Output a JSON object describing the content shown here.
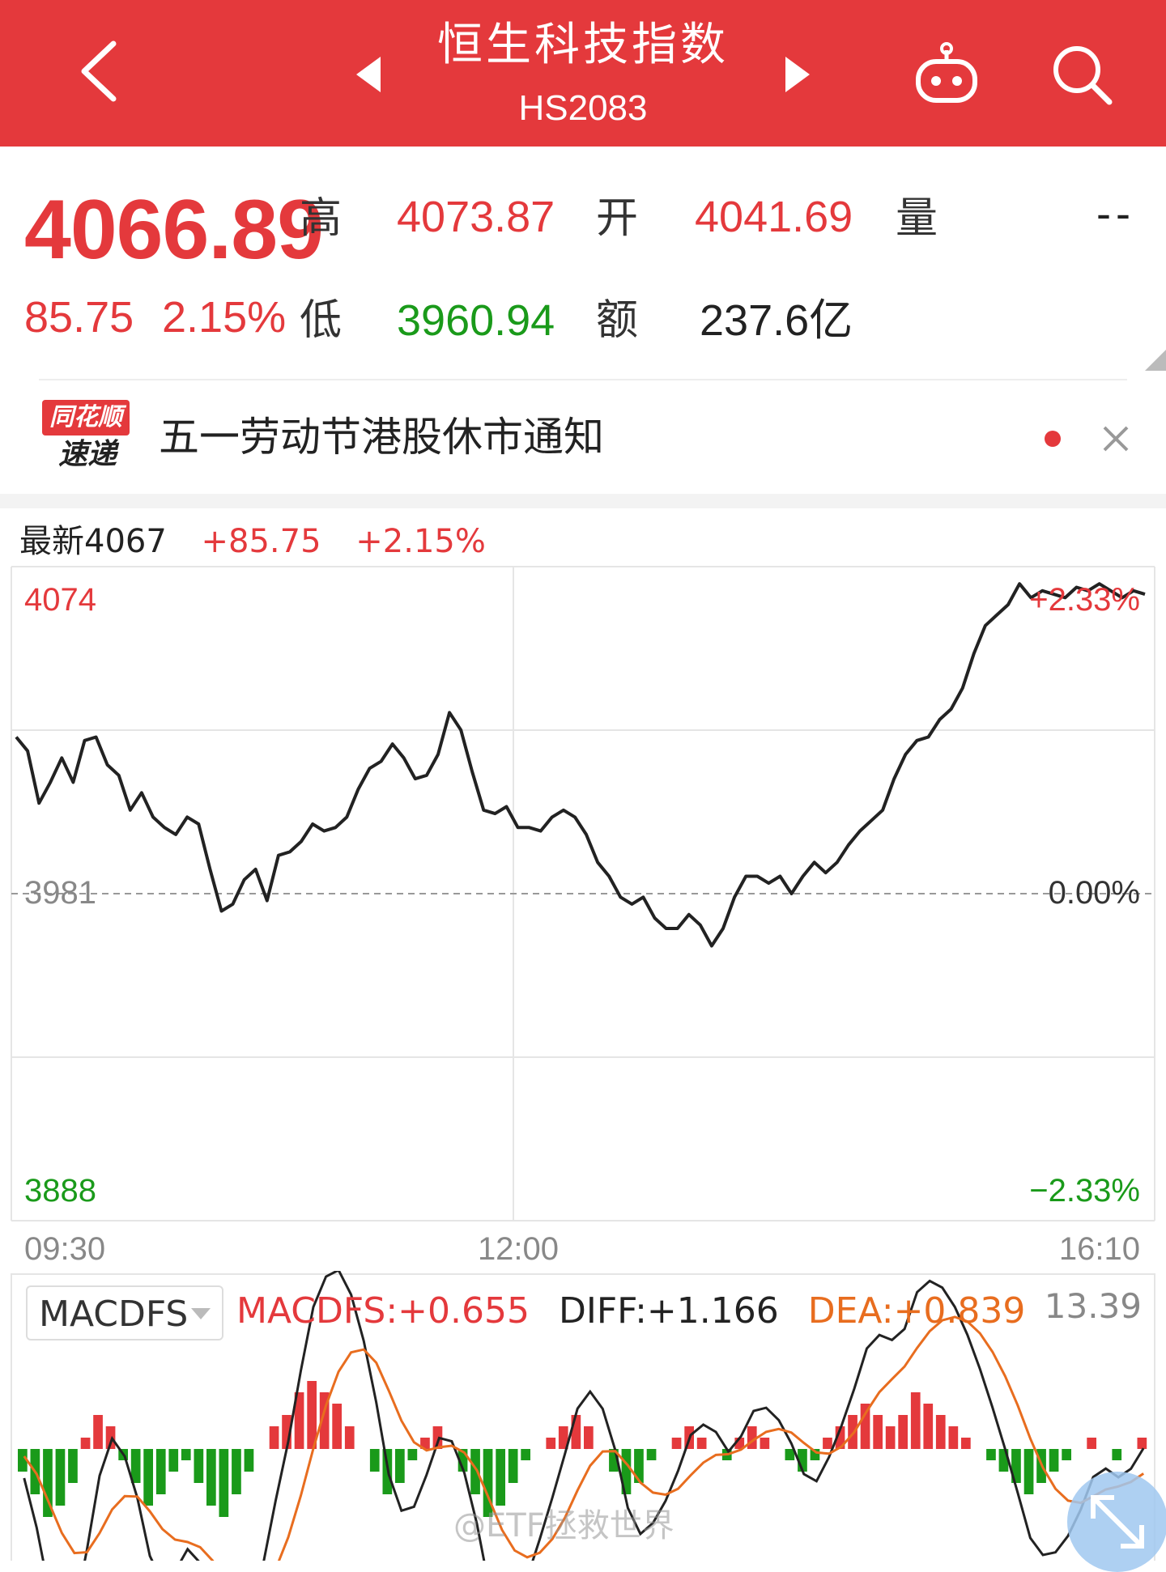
{
  "header": {
    "title": "恒生科技指数",
    "code": "HS2083",
    "icons": [
      "back-icon",
      "prev-arrow-icon",
      "next-arrow-icon",
      "robot-icon",
      "search-icon"
    ]
  },
  "quote": {
    "price": "4066.89",
    "change": "85.75",
    "change_pct": "2.15%",
    "high_label": "高",
    "high": "4073.87",
    "low_label": "低",
    "low": "3960.94",
    "open_label": "开",
    "open": "4041.69",
    "amount_label": "额",
    "amount": "237.6亿",
    "volume_label": "量",
    "volume": "--"
  },
  "news": {
    "logo_top": "同花顺",
    "logo_bottom": "速递",
    "text": "五一劳动节港股休市通知"
  },
  "chart": {
    "latest_label": "最新4067",
    "latest_change": "+85.75",
    "latest_pct": "+2.15%",
    "y_top": "4074",
    "y_mid": "3981",
    "y_bot": "3888",
    "pct_top": "+2.33%",
    "pct_mid": "0.00%",
    "pct_bot": "−2.33%",
    "time_start": "09:30",
    "time_mid": "12:00",
    "time_end": "16:10"
  },
  "chart_data": {
    "type": "line",
    "series": [
      {
        "values": [
          4026,
          4022,
          4007,
          4013,
          4020,
          4013,
          4025,
          4026,
          4018,
          4015,
          4005,
          4010,
          4003,
          4000,
          3998,
          4003,
          4001,
          3988,
          3976,
          3978,
          3985,
          3988,
          3979,
          3992,
          3993,
          3996,
          4001,
          3999,
          4000,
          4003,
          4011,
          4017,
          4019,
          4024,
          4020,
          4014,
          4015,
          4021,
          4033,
          4028,
          4016,
          4005,
          4004,
          4006,
          4000,
          4000,
          3999,
          4003,
          4005,
          4003,
          3998,
          3990,
          3986,
          3980,
          3978,
          3980,
          3974,
          3971,
          3971,
          3975,
          3972,
          3966,
          3971,
          3980,
          3986,
          3986,
          3984,
          3986,
          3981,
          3986,
          3990,
          3987,
          3990,
          3995,
          3999,
          4002,
          4005,
          4014,
          4021,
          4025,
          4026,
          4031,
          4034,
          4040,
          4050,
          4058,
          4061,
          4064,
          4070,
          4066,
          4068,
          4067,
          4066,
          4069,
          4068,
          4070,
          4068,
          4066,
          4068,
          4067
        ],
        "color": "#222222"
      }
    ],
    "x_range": [
      "09:30",
      "16:10"
    ],
    "y_range": [
      3888,
      4074
    ],
    "baseline": 3981,
    "grid": true
  },
  "macd": {
    "selector_label": "MACDFS",
    "macdfs": "MACDFS:+0.655",
    "diff": "DIFF:+1.166",
    "dea": "DEA:+0.839",
    "max_value": "13.39",
    "hist_values": [
      -2,
      -4,
      -6,
      -5,
      -3,
      1,
      3,
      2,
      -1,
      -3,
      -5,
      -4,
      -2,
      -1,
      -3,
      -5,
      -6,
      -4,
      -2,
      0,
      2,
      3,
      5,
      6,
      5,
      4,
      2,
      0,
      -2,
      -4,
      -3,
      -1,
      1,
      2,
      0,
      -2,
      -4,
      -6,
      -5,
      -3,
      -1,
      0,
      1,
      2,
      3,
      2,
      0,
      -2,
      -4,
      -3,
      -1,
      0,
      1,
      2,
      1,
      0,
      -1,
      1,
      2,
      1,
      0,
      -1,
      -2,
      -1,
      1,
      2,
      3,
      4,
      3,
      2,
      3,
      5,
      4,
      3,
      2,
      1,
      0,
      -1,
      -2,
      -3,
      -4,
      -3,
      -2,
      -1,
      0,
      1,
      0,
      -1,
      0,
      1
    ]
  },
  "watermark": "@ETF拯救世界"
}
